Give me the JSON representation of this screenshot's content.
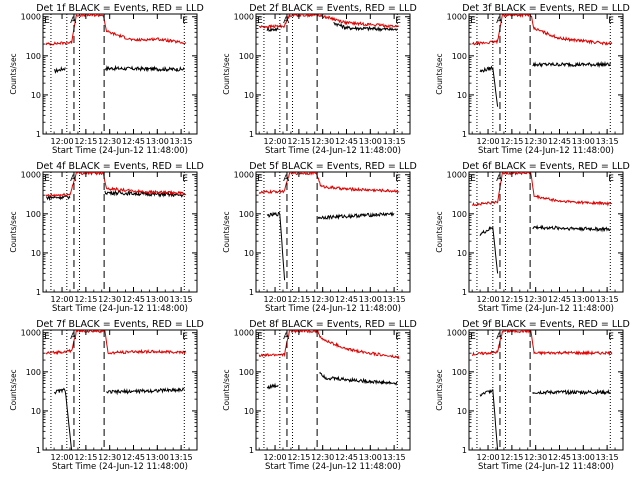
{
  "figure": {
    "background": "#ffffff",
    "events_color": "#000000",
    "lld_color": "#e00000"
  },
  "chart_data": [
    {
      "panel": 1,
      "type": "line",
      "title": "Det 1f BLACK = Events, RED = LLD",
      "xlabel": "Start Time (24-Jun-12 11:48:00)",
      "ylabel": "Counts/sec",
      "yscale": "log",
      "ylim": [
        1,
        1000
      ],
      "x_tick_labels": [
        "12:00",
        "12:15",
        "12:30",
        "12:45",
        "13:00",
        "13:15"
      ],
      "y_tick_labels": [
        "1",
        "10",
        "100",
        "1000"
      ],
      "markers": [
        "E",
        "A",
        "E"
      ],
      "grid": false,
      "series": [
        {
          "name": "Events",
          "color": "#000000",
          "segments": [
            {
              "x": [
                "11:55",
                "12:02"
              ],
              "y": [
                40,
                48
              ]
            },
            {
              "x": [
                "12:27",
                "13:17"
              ],
              "y": [
                48,
                45
              ]
            }
          ]
        },
        {
          "name": "LLD",
          "color": "#e00000",
          "segments": [
            {
              "x": [
                "11:50",
                "12:06",
                "12:09",
                "12:26",
                "12:28",
                "12:45",
                "13:00",
                "13:18"
              ],
              "y": [
                200,
                220,
                1100,
                1100,
                420,
                250,
                270,
                210
              ]
            }
          ]
        }
      ]
    },
    {
      "panel": 2,
      "type": "line",
      "title": "Det 2f BLACK = Events, RED = LLD",
      "xlabel": "Start Time (24-Jun-12 11:48:00)",
      "ylabel": "Counts/sec",
      "yscale": "log",
      "ylim": [
        1,
        1000
      ],
      "x_tick_labels": [
        "12:00",
        "12:15",
        "12:30",
        "12:45",
        "13:00",
        "13:15"
      ],
      "y_tick_labels": [
        "1",
        "10",
        "100",
        "1000"
      ],
      "markers": [
        "E",
        "A",
        "E"
      ],
      "grid": false,
      "series": [
        {
          "name": "Events",
          "color": "#000000",
          "segments": [
            {
              "x": [
                "11:55",
                "12:02"
              ],
              "y": [
                470,
                480
              ]
            },
            {
              "x": [
                "12:37",
                "12:45",
                "13:17"
              ],
              "y": [
                700,
                520,
                470
              ]
            }
          ]
        },
        {
          "name": "LLD",
          "color": "#e00000",
          "segments": [
            {
              "x": [
                "11:50",
                "12:06",
                "12:09",
                "12:27",
                "12:36",
                "12:45",
                "13:18"
              ],
              "y": [
                550,
                580,
                1100,
                1100,
                900,
                700,
                560
              ]
            }
          ]
        }
      ]
    },
    {
      "panel": 3,
      "type": "line",
      "title": "Det 3f BLACK = Events, RED = LLD",
      "xlabel": "Start Time (24-Jun-12 11:48:00)",
      "ylabel": "Counts/sec",
      "yscale": "log",
      "ylim": [
        1,
        1000
      ],
      "x_tick_labels": [
        "12:00",
        "12:15",
        "12:30",
        "12:45",
        "13:00",
        "13:15"
      ],
      "y_tick_labels": [
        "1",
        "10",
        "100",
        "1000"
      ],
      "markers": [
        "E",
        "A",
        "E"
      ],
      "grid": false,
      "series": [
        {
          "name": "Events",
          "color": "#000000",
          "segments": [
            {
              "x": [
                "11:55",
                "12:03",
                "12:06"
              ],
              "y": [
                40,
                50,
                5
              ]
            },
            {
              "x": [
                "12:28",
                "13:17"
              ],
              "y": [
                60,
                60
              ]
            }
          ]
        },
        {
          "name": "LLD",
          "color": "#e00000",
          "segments": [
            {
              "x": [
                "11:50",
                "12:06",
                "12:09",
                "12:27",
                "12:29",
                "12:45",
                "13:18"
              ],
              "y": [
                200,
                230,
                1100,
                1100,
                500,
                280,
                200
              ]
            }
          ]
        }
      ]
    },
    {
      "panel": 4,
      "type": "line",
      "title": "Det 4f BLACK = Events, RED = LLD",
      "xlabel": "Start Time (24-Jun-12 11:48:00)",
      "ylabel": "Counts/sec",
      "yscale": "log",
      "ylim": [
        1,
        1000
      ],
      "x_tick_labels": [
        "12:00",
        "12:15",
        "12:30",
        "12:45",
        "13:00",
        "13:15"
      ],
      "y_tick_labels": [
        "1",
        "10",
        "100",
        "1000"
      ],
      "markers": [
        "E",
        "A",
        "E"
      ],
      "grid": false,
      "series": [
        {
          "name": "Events",
          "color": "#000000",
          "segments": [
            {
              "x": [
                "11:50",
                "12:05"
              ],
              "y": [
                260,
                270
              ]
            },
            {
              "x": [
                "12:27",
                "13:17"
              ],
              "y": [
                350,
                300
              ]
            }
          ]
        },
        {
          "name": "LLD",
          "color": "#e00000",
          "segments": [
            {
              "x": [
                "11:50",
                "12:05",
                "12:09",
                "12:26",
                "12:28",
                "12:45",
                "13:18"
              ],
              "y": [
                290,
                310,
                1100,
                1100,
                450,
                380,
                330
              ]
            }
          ]
        }
      ]
    },
    {
      "panel": 5,
      "type": "line",
      "title": "Det 5f BLACK = Events, RED = LLD",
      "xlabel": "Start Time (24-Jun-12 11:48:00)",
      "ylabel": "Counts/sec",
      "yscale": "log",
      "ylim": [
        1,
        1000
      ],
      "x_tick_labels": [
        "12:00",
        "12:15",
        "12:30",
        "12:45",
        "13:00",
        "13:15"
      ],
      "y_tick_labels": [
        "1",
        "10",
        "100",
        "1000"
      ],
      "markers": [
        "E",
        "A",
        "E"
      ],
      "grid": false,
      "series": [
        {
          "name": "Events",
          "color": "#000000",
          "segments": [
            {
              "x": [
                "11:55",
                "12:03",
                "12:06"
              ],
              "y": [
                90,
                100,
                2
              ]
            },
            {
              "x": [
                "12:27",
                "13:15"
              ],
              "y": [
                80,
                100
              ]
            }
          ]
        },
        {
          "name": "LLD",
          "color": "#e00000",
          "segments": [
            {
              "x": [
                "11:50",
                "12:06",
                "12:09",
                "12:26",
                "12:29",
                "12:45",
                "13:18"
              ],
              "y": [
                350,
                380,
                1100,
                1100,
                500,
                430,
                380
              ]
            }
          ]
        }
      ]
    },
    {
      "panel": 6,
      "type": "line",
      "title": "Det 6f BLACK = Events, RED = LLD",
      "xlabel": "Start Time (24-Jun-12 11:48:00)",
      "ylabel": "Counts/sec",
      "yscale": "log",
      "ylim": [
        1,
        1000
      ],
      "x_tick_labels": [
        "12:00",
        "12:15",
        "12:30",
        "12:45",
        "13:00",
        "13:15"
      ],
      "y_tick_labels": [
        "1",
        "10",
        "100",
        "1000"
      ],
      "markers": [
        "E",
        "A",
        "E"
      ],
      "grid": false,
      "series": [
        {
          "name": "Events",
          "color": "#000000",
          "segments": [
            {
              "x": [
                "11:55",
                "12:03",
                "12:06"
              ],
              "y": [
                30,
                45,
                3
              ]
            },
            {
              "x": [
                "12:28",
                "13:17"
              ],
              "y": [
                45,
                40
              ]
            }
          ]
        },
        {
          "name": "LLD",
          "color": "#e00000",
          "segments": [
            {
              "x": [
                "11:50",
                "12:06",
                "12:09",
                "12:27",
                "12:29",
                "12:45",
                "13:18"
              ],
              "y": [
                170,
                200,
                1100,
                1100,
                280,
                210,
                180
              ]
            }
          ]
        }
      ]
    },
    {
      "panel": 7,
      "type": "line",
      "title": "Det 7f BLACK = Events, RED = LLD",
      "xlabel": "Start Time (24-Jun-12 11:48:00)",
      "ylabel": "Counts/sec",
      "yscale": "log",
      "ylim": [
        1,
        1000
      ],
      "x_tick_labels": [
        "12:00",
        "12:15",
        "12:30",
        "12:45",
        "13:00",
        "13:15"
      ],
      "y_tick_labels": [
        "1",
        "10",
        "100",
        "1000"
      ],
      "markers": [
        "E",
        "A",
        "E"
      ],
      "grid": false,
      "series": [
        {
          "name": "Events",
          "color": "#000000",
          "segments": [
            {
              "x": [
                "11:55",
                "12:02",
                "12:06"
              ],
              "y": [
                30,
                35,
                1
              ]
            },
            {
              "x": [
                "12:28",
                "13:17"
              ],
              "y": [
                30,
                35
              ]
            }
          ]
        },
        {
          "name": "LLD",
          "color": "#e00000",
          "segments": [
            {
              "x": [
                "11:50",
                "12:06",
                "12:09",
                "12:27",
                "12:29",
                "12:45",
                "13:18"
              ],
              "y": [
                300,
                340,
                1100,
                1100,
                300,
                330,
                320
              ]
            }
          ]
        }
      ]
    },
    {
      "panel": 8,
      "type": "line",
      "title": "Det 8f BLACK = Events, RED = LLD",
      "xlabel": "Start Time (24-Jun-12 11:48:00)",
      "ylabel": "Counts/sec",
      "yscale": "log",
      "ylim": [
        1,
        1000
      ],
      "x_tick_labels": [
        "12:00",
        "12:15",
        "12:30",
        "12:45",
        "13:00",
        "13:15"
      ],
      "y_tick_labels": [
        "1",
        "10",
        "100",
        "1000"
      ],
      "markers": [
        "E",
        "A",
        "E"
      ],
      "grid": false,
      "series": [
        {
          "name": "Events",
          "color": "#000000",
          "segments": [
            {
              "x": [
                "11:55",
                "12:02"
              ],
              "y": [
                40,
                45
              ]
            },
            {
              "x": [
                "12:28",
                "12:32",
                "13:17"
              ],
              "y": [
                100,
                70,
                50
              ]
            }
          ]
        },
        {
          "name": "LLD",
          "color": "#e00000",
          "segments": [
            {
              "x": [
                "11:50",
                "12:06",
                "12:09",
                "12:27",
                "12:29",
                "12:45",
                "13:18"
              ],
              "y": [
                260,
                280,
                1100,
                1100,
                700,
                380,
                230
              ]
            }
          ]
        }
      ]
    },
    {
      "panel": 9,
      "type": "line",
      "title": "Det 9f BLACK = Events, RED = LLD",
      "xlabel": "Start Time (24-Jun-12 11:48:00)",
      "ylabel": "Counts/sec",
      "yscale": "log",
      "ylim": [
        1,
        1000
      ],
      "x_tick_labels": [
        "12:00",
        "12:15",
        "12:30",
        "12:45",
        "13:00",
        "13:15"
      ],
      "y_tick_labels": [
        "1",
        "10",
        "100",
        "1000"
      ],
      "markers": [
        "E",
        "A",
        "E"
      ],
      "grid": false,
      "series": [
        {
          "name": "Events",
          "color": "#000000",
          "segments": [
            {
              "x": [
                "11:55",
                "12:03",
                "12:06"
              ],
              "y": [
                25,
                35,
                1
              ]
            },
            {
              "x": [
                "12:28",
                "13:17"
              ],
              "y": [
                30,
                30
              ]
            }
          ]
        },
        {
          "name": "LLD",
          "color": "#e00000",
          "segments": [
            {
              "x": [
                "11:50",
                "12:06",
                "12:09",
                "12:27",
                "12:29",
                "12:45",
                "13:18"
              ],
              "y": [
                280,
                320,
                1100,
                1100,
                300,
                310,
                300
              ]
            }
          ]
        }
      ]
    }
  ]
}
